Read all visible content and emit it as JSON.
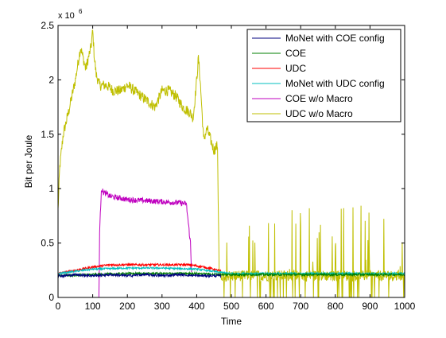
{
  "chart_data": {
    "type": "line",
    "xlabel": "Time",
    "ylabel": "Bit per Joule",
    "y_multiplier_base": "x 10",
    "y_multiplier_exp": "6",
    "xlim": [
      0,
      1000
    ],
    "ylim": [
      0,
      2.5
    ],
    "x_ticks": [
      0,
      100,
      200,
      300,
      400,
      500,
      600,
      700,
      800,
      900,
      1000
    ],
    "y_ticks": [
      0,
      0.5,
      1,
      1.5,
      2,
      2.5
    ],
    "grid": false,
    "legend_position": "top-right",
    "series": [
      {
        "name": "MoNet with COE config",
        "color": "#00007f",
        "x": [
          0,
          20,
          50,
          100,
          150,
          200,
          250,
          300,
          350,
          400,
          450,
          470
        ],
        "y": [
          0.2,
          0.2,
          0.21,
          0.2,
          0.21,
          0.2,
          0.21,
          0.2,
          0.21,
          0.2,
          0.2,
          0.2
        ],
        "noise": 0.012
      },
      {
        "name": "COE",
        "color": "#007f00",
        "x": [
          0,
          100,
          200,
          300,
          400,
          470,
          500,
          600,
          700,
          800,
          900,
          1000
        ],
        "y": [
          0.2,
          0.21,
          0.22,
          0.22,
          0.22,
          0.21,
          0.21,
          0.21,
          0.21,
          0.21,
          0.21,
          0.21
        ],
        "noise": 0.01
      },
      {
        "name": "UDC",
        "color": "#ff0000",
        "x": [
          0,
          50,
          100,
          150,
          200,
          300,
          380,
          420,
          450,
          470
        ],
        "y": [
          0.22,
          0.25,
          0.28,
          0.3,
          0.3,
          0.3,
          0.3,
          0.28,
          0.26,
          0.24
        ],
        "noise": 0.01
      },
      {
        "name": "MoNet with UDC config",
        "color": "#00bfbf",
        "x": [
          0,
          50,
          100,
          200,
          300,
          400,
          470,
          500,
          600,
          700,
          800,
          900,
          1000
        ],
        "y": [
          0.22,
          0.24,
          0.26,
          0.27,
          0.27,
          0.26,
          0.23,
          0.22,
          0.22,
          0.22,
          0.22,
          0.22,
          0.22
        ],
        "noise": 0.008
      },
      {
        "name": "COE w/o Macro",
        "color": "#bf00bf",
        "x": [
          118,
          120,
          125,
          130,
          150,
          200,
          250,
          300,
          350,
          370,
          382,
          385
        ],
        "y": [
          0,
          0.6,
          1.0,
          0.97,
          0.93,
          0.9,
          0.89,
          0.88,
          0.87,
          0.86,
          0.5,
          0.23
        ],
        "noise": 0.025
      },
      {
        "name": "UDC w/o Macro",
        "color": "#bfbf00",
        "x": [
          0,
          5,
          15,
          30,
          50,
          65,
          80,
          95,
          100,
          105,
          110,
          120,
          140,
          160,
          180,
          200,
          220,
          240,
          260,
          280,
          300,
          320,
          340,
          360,
          380,
          390,
          400,
          405,
          410,
          420,
          430,
          440,
          450,
          460,
          465,
          470,
          480,
          520,
          560,
          600,
          650,
          700,
          750,
          800,
          850,
          900,
          950,
          1000
        ],
        "y": [
          0.8,
          1.2,
          1.5,
          1.7,
          2.0,
          2.3,
          2.1,
          2.3,
          2.45,
          2.2,
          2.05,
          1.95,
          1.95,
          1.9,
          1.9,
          1.95,
          1.9,
          1.85,
          1.8,
          1.75,
          1.9,
          1.9,
          1.85,
          1.75,
          1.7,
          1.65,
          2.0,
          2.2,
          2.0,
          1.45,
          1.55,
          1.45,
          1.35,
          1.4,
          0.2,
          0.2,
          0.2,
          0.2,
          0.2,
          0.2,
          0.2,
          0.2,
          0.2,
          0.2,
          0.2,
          0.2,
          0.2,
          0.2
        ],
        "noise": 0.05,
        "spikes_after_x": 470
      }
    ]
  }
}
